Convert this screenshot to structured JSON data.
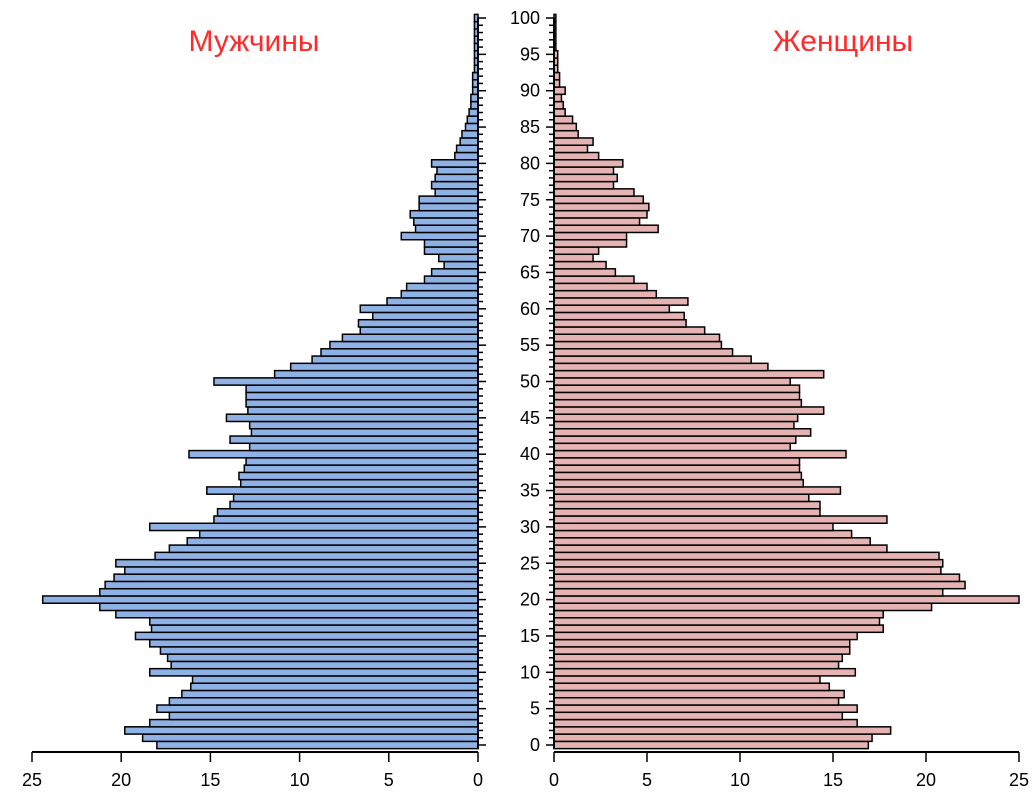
{
  "colors": {
    "male_fill": "#8fb2e6",
    "female_fill": "#e6b3b3",
    "bar_stroke": "#000000",
    "title": "#ff2a2a"
  },
  "chart_data": {
    "type": "bar",
    "orientation": "horizontal",
    "subtype": "population-pyramid",
    "age_range": [
      0,
      100
    ],
    "age_ticks": [
      0,
      5,
      10,
      15,
      20,
      25,
      30,
      35,
      40,
      45,
      50,
      55,
      60,
      65,
      70,
      75,
      80,
      85,
      90,
      95,
      100
    ],
    "x_ticks": [
      0,
      5,
      10,
      15,
      20,
      25
    ],
    "xlim": [
      0,
      25
    ],
    "series": [
      {
        "name": "Мужчины",
        "values": [
          18.0,
          18.8,
          19.8,
          18.4,
          17.3,
          18.0,
          17.3,
          16.6,
          16.1,
          16.0,
          18.4,
          17.2,
          17.4,
          17.8,
          18.4,
          19.2,
          18.3,
          18.4,
          20.3,
          21.2,
          24.4,
          21.2,
          20.9,
          20.4,
          19.8,
          20.3,
          18.1,
          17.3,
          16.3,
          15.6,
          18.4,
          14.8,
          14.6,
          13.9,
          13.7,
          15.2,
          13.3,
          13.4,
          13.1,
          13.0,
          16.2,
          12.8,
          13.9,
          12.7,
          12.8,
          14.1,
          12.9,
          13.0,
          13.0,
          13.0,
          14.8,
          11.4,
          10.5,
          9.3,
          8.8,
          8.3,
          7.6,
          6.6,
          6.7,
          5.9,
          6.6,
          5.1,
          4.3,
          4.0,
          3.0,
          2.6,
          1.9,
          2.2,
          3.0,
          3.0,
          4.3,
          3.5,
          3.6,
          3.8,
          3.3,
          3.3,
          2.4,
          2.6,
          2.4,
          2.3,
          2.6,
          1.3,
          1.2,
          1.0,
          0.9,
          0.7,
          0.6,
          0.5,
          0.4,
          0.4,
          0.3,
          0.3,
          0.3,
          0.2,
          0.2,
          0.2,
          0.2,
          0.2,
          0.2,
          0.2,
          0.2
        ]
      },
      {
        "name": "Женщины",
        "values": [
          16.9,
          17.1,
          18.1,
          16.3,
          15.5,
          16.3,
          15.3,
          15.6,
          14.8,
          14.3,
          16.2,
          15.3,
          15.5,
          15.9,
          15.9,
          16.3,
          17.7,
          17.5,
          17.7,
          20.3,
          25.0,
          20.9,
          22.1,
          21.8,
          20.8,
          20.9,
          20.7,
          17.9,
          17.0,
          16.0,
          15.0,
          17.9,
          14.3,
          14.3,
          13.7,
          15.4,
          13.4,
          13.3,
          13.2,
          13.2,
          15.7,
          12.7,
          13.0,
          13.8,
          12.9,
          13.1,
          14.5,
          13.3,
          13.2,
          13.2,
          12.7,
          14.5,
          11.5,
          10.6,
          9.6,
          9.0,
          8.9,
          8.1,
          7.1,
          7.0,
          6.2,
          7.2,
          5.5,
          5.0,
          4.3,
          3.3,
          2.8,
          2.1,
          2.4,
          3.9,
          3.9,
          5.6,
          4.6,
          5.0,
          5.1,
          4.8,
          4.3,
          3.2,
          3.4,
          3.2,
          3.7,
          2.4,
          1.8,
          2.1,
          1.3,
          1.2,
          1.0,
          0.6,
          0.5,
          0.4,
          0.6,
          0.3,
          0.3,
          0.2,
          0.2,
          0.2,
          0.1,
          0.1,
          0.1,
          0.1,
          0.1
        ]
      }
    ]
  }
}
